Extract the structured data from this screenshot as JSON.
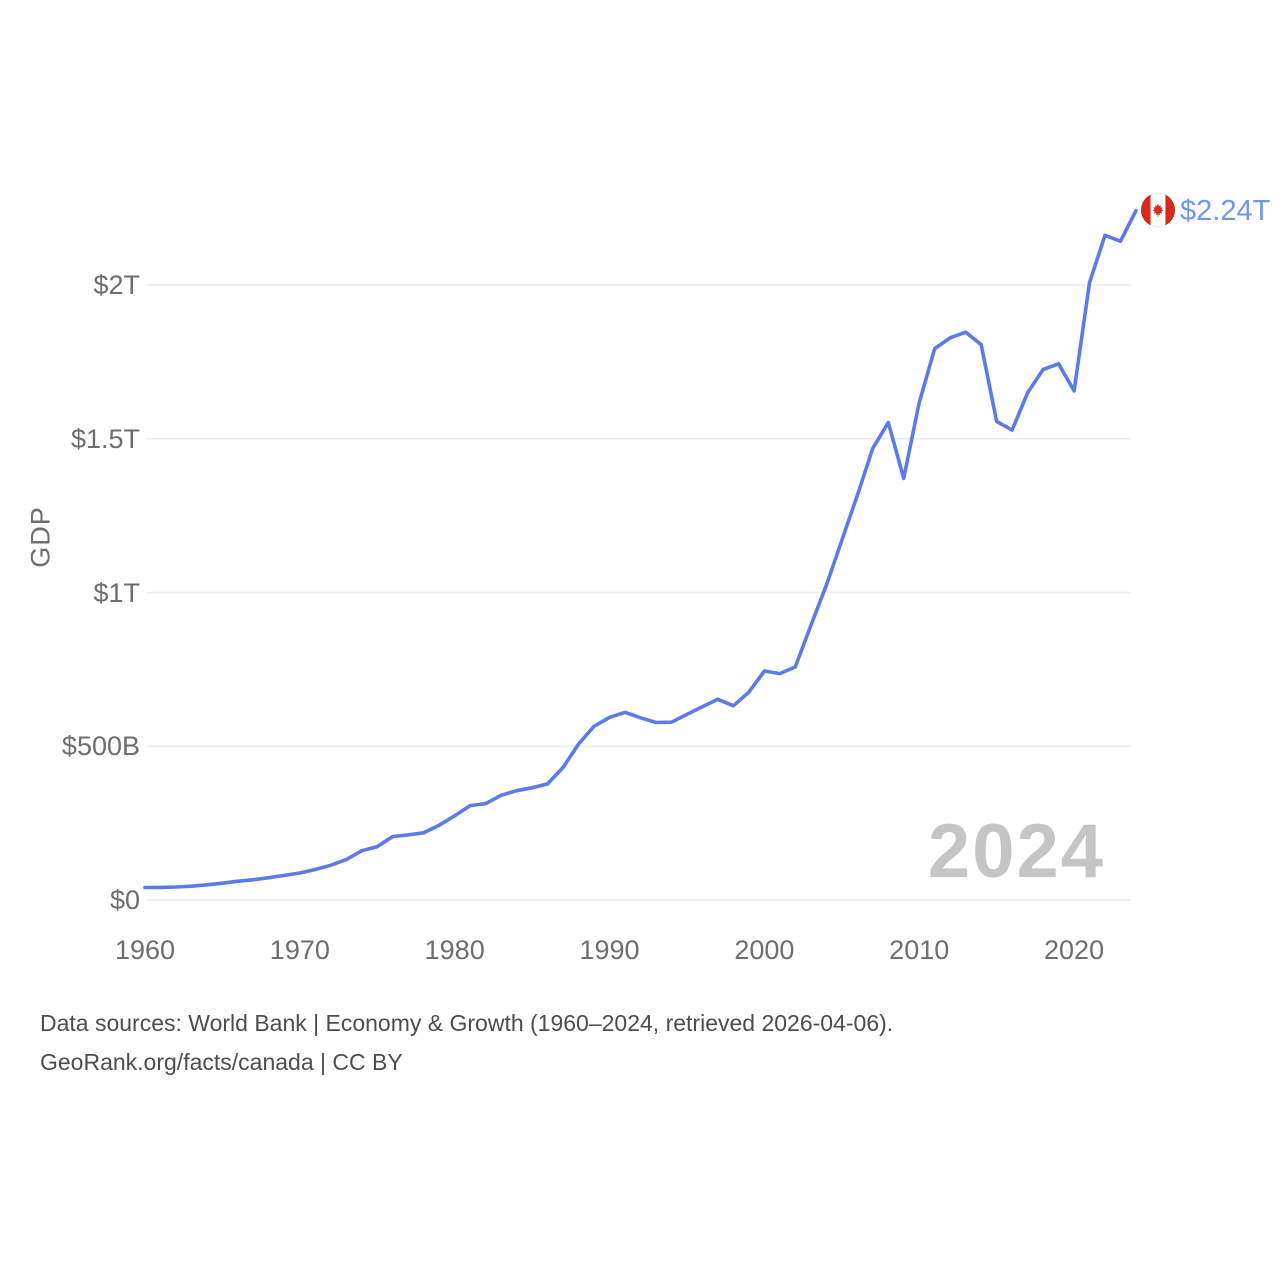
{
  "chart": {
    "y_axis_title": "GDP",
    "value_label": "$2.24T",
    "watermark": "2024",
    "flag_icon": "canada-flag",
    "line_color": "#5b7ce8",
    "value_label_color": "#7295ee",
    "grid_color": "#ececec",
    "tick_color": "#6e6e6e",
    "watermark_color": "#c5c5c5",
    "flag_red": "#d52b1e"
  },
  "footer": {
    "line1": "Data sources: World Bank | Economy & Growth (1960–2024, retrieved 2026-04-06).",
    "line2": "GeoRank.org/facts/canada | CC BY"
  },
  "chart_data": {
    "type": "line",
    "series_name": "Canada GDP",
    "title": "",
    "xlabel": "",
    "ylabel": "GDP",
    "unit": "USD billions",
    "grid": true,
    "legend_position": "none",
    "end_label": "$2.24T",
    "end_year_label": "2024",
    "ylim": [
      0,
      2320
    ],
    "xlim": [
      1960,
      2024
    ],
    "x_ticks": [
      1960,
      1970,
      1980,
      1990,
      2000,
      2010,
      2020
    ],
    "y_ticks": [
      {
        "value": 0,
        "label": "$0"
      },
      {
        "value": 500,
        "label": "$500B"
      },
      {
        "value": 1000,
        "label": "$1T"
      },
      {
        "value": 1500,
        "label": "$1.5T"
      },
      {
        "value": 2000,
        "label": "$2T"
      }
    ],
    "x": [
      1960,
      1961,
      1962,
      1963,
      1964,
      1965,
      1966,
      1967,
      1968,
      1969,
      1970,
      1971,
      1972,
      1973,
      1974,
      1975,
      1976,
      1977,
      1978,
      1979,
      1980,
      1981,
      1982,
      1983,
      1984,
      1985,
      1986,
      1987,
      1988,
      1989,
      1990,
      1991,
      1992,
      1993,
      1994,
      1995,
      1996,
      1997,
      1998,
      1999,
      2000,
      2001,
      2002,
      2003,
      2004,
      2005,
      2006,
      2007,
      2008,
      2009,
      2010,
      2011,
      2012,
      2013,
      2014,
      2015,
      2016,
      2017,
      2018,
      2019,
      2020,
      2021,
      2022,
      2023,
      2024
    ],
    "values": [
      40.5,
      40.9,
      42.2,
      45.0,
      49.4,
      54.5,
      61.1,
      65.7,
      72.4,
      80.0,
      87.9,
      99.3,
      113.1,
      131.3,
      160.4,
      173.8,
      206.6,
      211.6,
      218.5,
      243.1,
      273.9,
      307.0,
      313.5,
      340.6,
      355.4,
      364.8,
      377.7,
      431.2,
      507.4,
      565.0,
      593.9,
      610.3,
      592.4,
      577.2,
      578.1,
      604.0,
      628.6,
      652.8,
      631.4,
      676.1,
      744.8,
      736.4,
      758.0,
      892.4,
      1023.2,
      1169.4,
      1315.4,
      1468.8,
      1553.0,
      1371.2,
      1617.3,
      1793.3,
      1828.4,
      1846.6,
      1805.8,
      1556.5,
      1528.0,
      1649.3,
      1725.3,
      1743.7,
      1655.7,
      2007.5,
      2161.5,
      2142.5,
      2241.9
    ]
  }
}
